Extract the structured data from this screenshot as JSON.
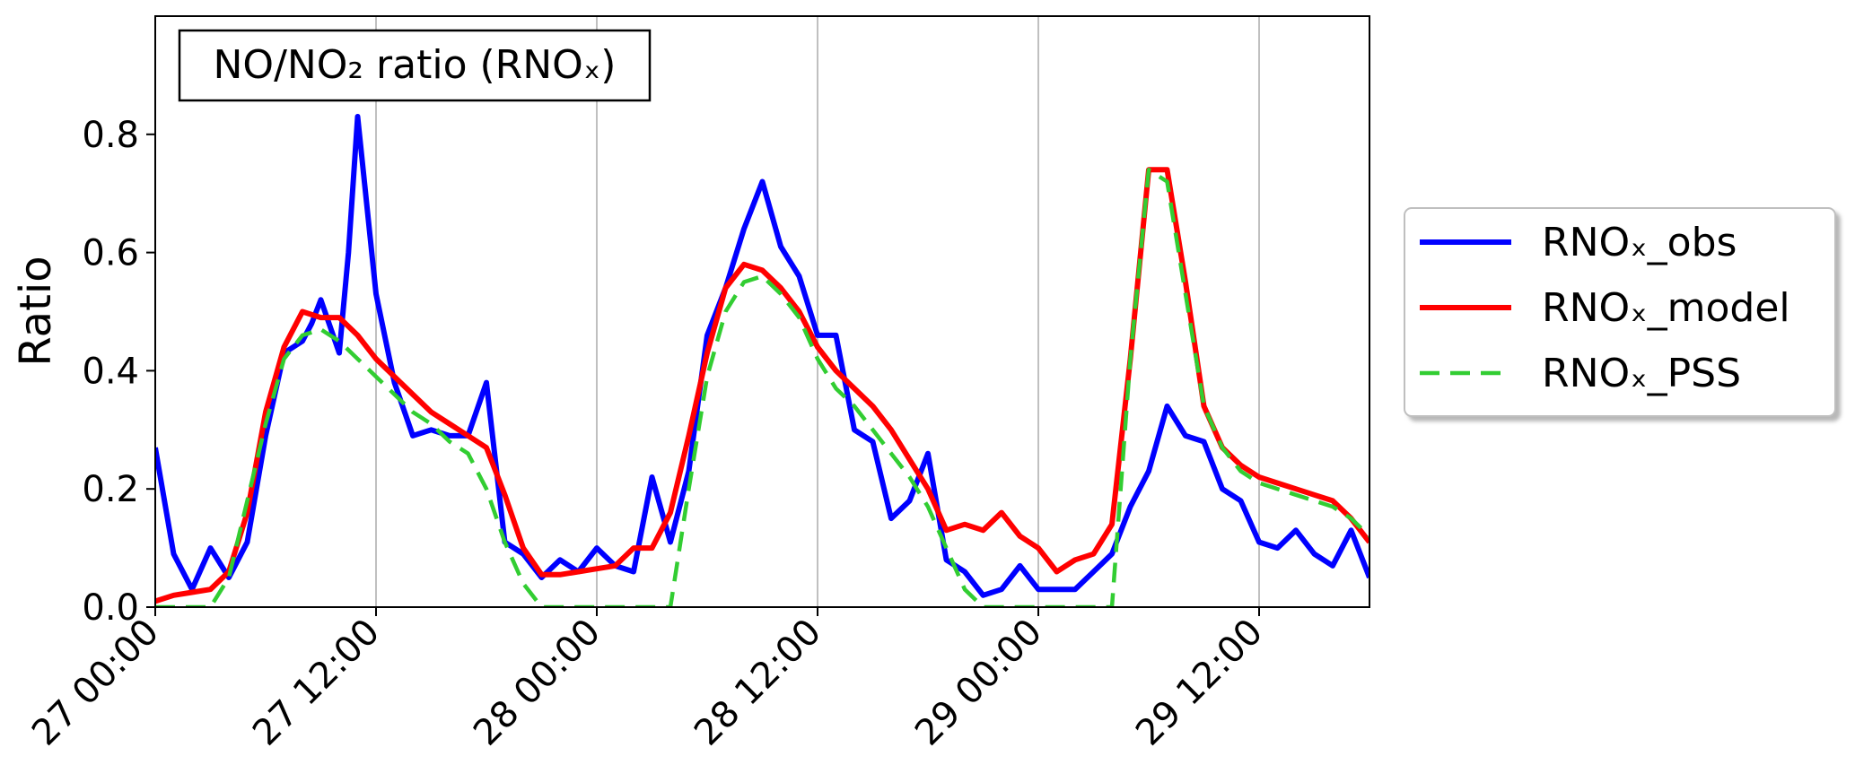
{
  "chart_data": {
    "type": "line",
    "title": "NO/NO₂ ratio (RNOₓ)",
    "xlabel": "",
    "ylabel": "Ratio",
    "x_unit": "hours from 27 00:00",
    "xlim": [
      0,
      66
    ],
    "ylim": [
      0,
      1.0
    ],
    "yticks": [
      0.0,
      0.2,
      0.4,
      0.6,
      0.8
    ],
    "ytick_labels": [
      "0.0",
      "0.2",
      "0.4",
      "0.6",
      "0.8"
    ],
    "xticks": [
      0,
      12,
      24,
      36,
      48,
      60
    ],
    "xtick_labels": [
      "27 00:00",
      "27 12:00",
      "28 00:00",
      "28 12:00",
      "29 00:00",
      "29 12:00"
    ],
    "grid": "vertical",
    "legend_position": "right, outside plot",
    "series": [
      {
        "name": "RNOₓ_obs",
        "color": "#0000ff",
        "style": "solid",
        "x": [
          0,
          1,
          2,
          3,
          4,
          5,
          6,
          7,
          8,
          8.5,
          9,
          10,
          10.5,
          11,
          12,
          13,
          14,
          15,
          16,
          17,
          18,
          19,
          20,
          21,
          22,
          23,
          24,
          25,
          26,
          27,
          28,
          29,
          30,
          31,
          32,
          33,
          34,
          35,
          36,
          37,
          38,
          39,
          40,
          41,
          42,
          43,
          44,
          45,
          46,
          47,
          48,
          49,
          50,
          51,
          52,
          53,
          54,
          55,
          56,
          57,
          58,
          59,
          60,
          61,
          62,
          63,
          64,
          65,
          66
        ],
        "y": [
          0.27,
          0.09,
          0.03,
          0.1,
          0.05,
          0.11,
          0.29,
          0.43,
          0.45,
          0.48,
          0.52,
          0.43,
          0.6,
          0.83,
          0.53,
          0.38,
          0.29,
          0.3,
          0.29,
          0.29,
          0.38,
          0.11,
          0.09,
          0.05,
          0.08,
          0.06,
          0.1,
          0.07,
          0.06,
          0.22,
          0.11,
          0.23,
          0.46,
          0.54,
          0.64,
          0.72,
          0.61,
          0.56,
          0.46,
          0.46,
          0.3,
          0.28,
          0.15,
          0.18,
          0.26,
          0.08,
          0.06,
          0.02,
          0.03,
          0.07,
          0.03,
          0.03,
          0.03,
          0.06,
          0.09,
          0.17,
          0.23,
          0.34,
          0.29,
          0.28,
          0.2,
          0.18,
          0.11,
          0.1,
          0.13,
          0.09,
          0.07,
          0.13,
          0.05
        ]
      },
      {
        "name": "RNOₓ_model",
        "color": "#ff0000",
        "style": "solid",
        "x": [
          0,
          1,
          2,
          3,
          4,
          5,
          6,
          7,
          8,
          9,
          10,
          11,
          12,
          13,
          14,
          15,
          16,
          17,
          18,
          19,
          20,
          21,
          22,
          23,
          24,
          25,
          26,
          27,
          28,
          29,
          30,
          31,
          32,
          33,
          34,
          35,
          36,
          37,
          38,
          39,
          40,
          41,
          42,
          43,
          44,
          45,
          46,
          47,
          48,
          49,
          50,
          51,
          52,
          53,
          54,
          55,
          56,
          57,
          58,
          59,
          60,
          61,
          62,
          63,
          64,
          65,
          66
        ],
        "y": [
          0.01,
          0.02,
          0.025,
          0.03,
          0.06,
          0.16,
          0.33,
          0.44,
          0.5,
          0.49,
          0.49,
          0.46,
          0.42,
          0.39,
          0.36,
          0.33,
          0.31,
          0.29,
          0.27,
          0.19,
          0.1,
          0.055,
          0.055,
          0.06,
          0.065,
          0.07,
          0.1,
          0.1,
          0.16,
          0.29,
          0.43,
          0.54,
          0.58,
          0.57,
          0.54,
          0.5,
          0.44,
          0.4,
          0.37,
          0.34,
          0.3,
          0.25,
          0.2,
          0.13,
          0.14,
          0.13,
          0.16,
          0.12,
          0.1,
          0.06,
          0.08,
          0.09,
          0.14,
          0.42,
          0.74,
          0.74,
          0.55,
          0.34,
          0.27,
          0.24,
          0.22,
          0.21,
          0.2,
          0.19,
          0.18,
          0.15,
          0.11
        ]
      },
      {
        "name": "RNOₓ_PSS",
        "color": "#32cd32",
        "style": "dashed",
        "x": [
          0,
          1,
          2,
          3,
          4,
          5,
          6,
          7,
          8,
          9,
          10,
          11,
          12,
          13,
          14,
          15,
          16,
          17,
          18,
          19,
          20,
          21,
          22,
          23,
          24,
          25,
          26,
          27,
          28,
          29,
          30,
          31,
          32,
          33,
          34,
          35,
          36,
          37,
          38,
          39,
          40,
          41,
          42,
          43,
          44,
          45,
          46,
          47,
          48,
          49,
          50,
          51,
          52,
          53,
          54,
          55,
          56,
          57,
          58,
          59,
          60,
          61,
          62,
          63,
          64,
          65,
          66
        ],
        "y": [
          0,
          0,
          0,
          0,
          0.05,
          0.18,
          0.31,
          0.42,
          0.46,
          0.47,
          0.45,
          0.42,
          0.39,
          0.36,
          0.33,
          0.31,
          0.28,
          0.26,
          0.2,
          0.11,
          0.04,
          0,
          0,
          0,
          0,
          0,
          0,
          0,
          0,
          0.2,
          0.39,
          0.5,
          0.55,
          0.56,
          0.53,
          0.49,
          0.42,
          0.37,
          0.34,
          0.3,
          0.26,
          0.22,
          0.17,
          0.1,
          0.03,
          0,
          0,
          0,
          0,
          0,
          0,
          0,
          0,
          0.42,
          0.74,
          0.72,
          0.53,
          0.34,
          0.27,
          0.23,
          0.21,
          0.2,
          0.19,
          0.18,
          0.17,
          0.15,
          0.12
        ]
      }
    ]
  }
}
